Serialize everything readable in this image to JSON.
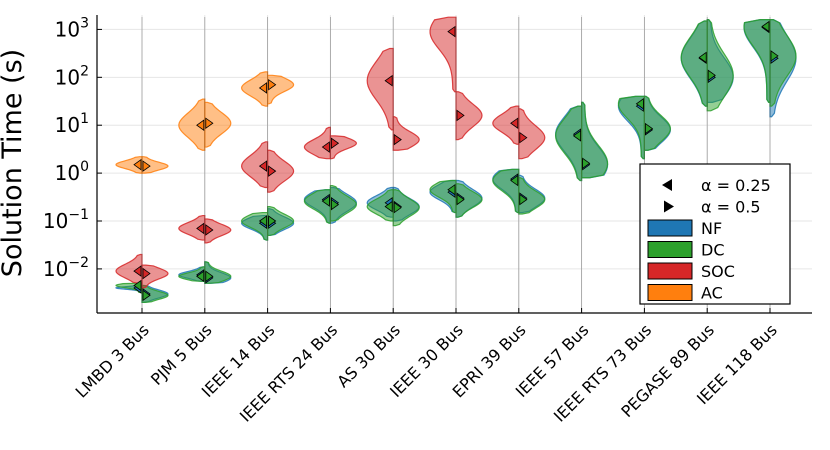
{
  "chart_data": {
    "type": "violin",
    "ylabel": "Solution Time (s)",
    "yscale": "log10",
    "ylim": [
      0.0012,
      2000
    ],
    "grid": true,
    "legend_position": "right-center",
    "ytick_exponents": [
      -2,
      -1,
      0,
      1,
      2,
      3
    ],
    "categories": [
      "LMBD 3 Bus",
      "PJM 5 Bus",
      "IEEE 14 Bus",
      "IEEE RTS 24 Bus",
      "AS 30 Bus",
      "IEEE 30 Bus",
      "EPRI 39 Bus",
      "IEEE 57 Bus",
      "IEEE RTS 73 Bus",
      "PEGASE 89 Bus",
      "IEEE 118 Bus"
    ],
    "legend": {
      "markers": [
        {
          "label": "α = 0.25",
          "side": "left",
          "glyph": "◀"
        },
        {
          "label": "α = 0.5",
          "side": "right",
          "glyph": "▶"
        }
      ],
      "formulations": [
        {
          "key": "NF",
          "label": "NF",
          "color": "#1f77b4"
        },
        {
          "key": "DC",
          "label": "DC",
          "color": "#2ca02c"
        },
        {
          "key": "SOC",
          "label": "SOC",
          "color": "#d62728"
        },
        {
          "key": "AC",
          "label": "AC",
          "color": "#ff7f0e"
        }
      ]
    },
    "series": [
      {
        "name": "NF",
        "color": "#1f77b4",
        "left_range": [
          [
            0.0035,
            0.0045
          ],
          [
            0.0055,
            0.011
          ],
          [
            0.04,
            0.13
          ],
          [
            0.09,
            0.45
          ],
          [
            0.12,
            0.5
          ],
          [
            0.15,
            0.7
          ],
          [
            0.15,
            1.2
          ],
          [
            0.7,
            25
          ],
          [
            2.0,
            40
          ],
          [
            25,
            1500
          ],
          [
            30,
            1600
          ]
        ],
        "left_median": [
          0.004,
          0.0075,
          0.09,
          0.28,
          0.24,
          0.4,
          0.75,
          6.5,
          25,
          250,
          1100
        ],
        "right_range": [
          [
            0.002,
            0.0045
          ],
          [
            0.005,
            0.014
          ],
          [
            0.05,
            0.18
          ],
          [
            0.09,
            0.5
          ],
          [
            0.1,
            0.5
          ],
          [
            0.12,
            0.7
          ],
          [
            0.15,
            0.9
          ],
          [
            0.8,
            30
          ],
          [
            3,
            40
          ],
          [
            30,
            1600
          ],
          [
            15,
            1600
          ]
        ],
        "right_median": [
          0.003,
          0.0065,
          0.09,
          0.24,
          0.2,
          0.3,
          0.3,
          1.5,
          8,
          100,
          250
        ]
      },
      {
        "name": "DC",
        "color": "#2ca02c",
        "left_range": [
          [
            0.0032,
            0.005
          ],
          [
            0.0055,
            0.011
          ],
          [
            0.04,
            0.15
          ],
          [
            0.09,
            0.45
          ],
          [
            0.1,
            0.45
          ],
          [
            0.15,
            0.7
          ],
          [
            0.15,
            1.2
          ],
          [
            0.7,
            25
          ],
          [
            2.0,
            40
          ],
          [
            25,
            1500
          ],
          [
            30,
            1600
          ]
        ],
        "left_median": [
          0.0045,
          0.007,
          0.1,
          0.26,
          0.2,
          0.45,
          0.7,
          6,
          28,
          260,
          1150
        ],
        "right_range": [
          [
            0.002,
            0.0045
          ],
          [
            0.005,
            0.014
          ],
          [
            0.05,
            0.2
          ],
          [
            0.1,
            0.55
          ],
          [
            0.08,
            0.45
          ],
          [
            0.12,
            0.6
          ],
          [
            0.14,
            0.8
          ],
          [
            0.8,
            30
          ],
          [
            3,
            40
          ],
          [
            20,
            1600
          ],
          [
            25,
            1600
          ]
        ],
        "right_median": [
          0.0028,
          0.007,
          0.1,
          0.22,
          0.19,
          0.28,
          0.28,
          1.6,
          8.5,
          110,
          280
        ]
      },
      {
        "name": "SOC",
        "color": "#d62728",
        "left_range": [
          [
            0.005,
            0.02
          ],
          [
            0.04,
            0.13
          ],
          [
            0.5,
            4.5
          ],
          [
            2.0,
            9
          ],
          [
            8,
            400
          ],
          [
            50,
            1800
          ],
          [
            4,
            25
          ]
        ],
        "left_median": [
          0.009,
          0.07,
          1.4,
          3.5,
          85,
          900,
          11
        ],
        "right_range": [
          [
            0.004,
            0.012
          ],
          [
            0.035,
            0.11
          ],
          [
            0.4,
            3
          ],
          [
            2.0,
            6
          ],
          [
            3,
            15
          ],
          [
            5,
            50
          ],
          [
            2,
            22
          ]
        ],
        "right_median": [
          0.008,
          0.065,
          1.1,
          4.2,
          5,
          16,
          5.5
        ]
      },
      {
        "name": "AC",
        "color": "#ff7f0e",
        "left_range": [
          [
            1.0,
            2.2
          ],
          [
            3,
            35
          ],
          [
            25,
            130
          ]
        ],
        "left_median": [
          1.5,
          10,
          60
        ],
        "right_range": [
          [
            1.0,
            2.2
          ],
          [
            3.5,
            30
          ],
          [
            28,
            110
          ]
        ],
        "right_median": [
          1.4,
          11,
          70
        ]
      }
    ]
  }
}
